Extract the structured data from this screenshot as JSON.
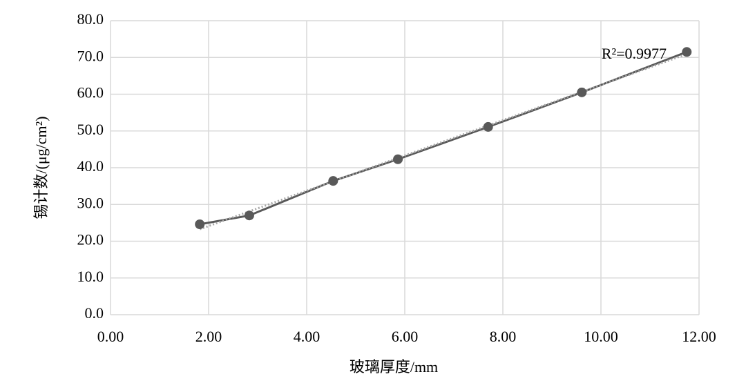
{
  "chart_data": {
    "type": "line",
    "x_label": "玻璃厚度/mm",
    "y_label": "锡计数/(μg/cm²)",
    "series": [
      {
        "color": "#595959",
        "x": [
          1.82,
          2.83,
          4.54,
          5.86,
          7.7,
          9.61,
          11.75
        ],
        "values": [
          24.6,
          27.0,
          36.4,
          42.3,
          51.1,
          60.5,
          71.5
        ]
      }
    ],
    "trendline": "linear",
    "trendline_color": "#a6a6a6",
    "r2_label": "R²=0.9977",
    "xlim": [
      0,
      12
    ],
    "xticks": [
      {
        "value": 0,
        "label": "0.00"
      },
      {
        "value": 2,
        "label": "2.00"
      },
      {
        "value": 4,
        "label": "4.00"
      },
      {
        "value": 6,
        "label": "6.00"
      },
      {
        "value": 8,
        "label": "8.00"
      },
      {
        "value": 10,
        "label": "10.00"
      },
      {
        "value": 12,
        "label": "12.00"
      }
    ],
    "ylim": [
      0,
      80
    ],
    "yticks": [
      {
        "value": 0,
        "label": "0.0"
      },
      {
        "value": 10,
        "label": "10.0"
      },
      {
        "value": 20,
        "label": "20.0"
      },
      {
        "value": 30,
        "label": "30.0"
      },
      {
        "value": 40,
        "label": "40.0"
      },
      {
        "value": 50,
        "label": "50.0"
      },
      {
        "value": 60,
        "label": "60.0"
      },
      {
        "value": 70,
        "label": "70.0"
      },
      {
        "value": 80,
        "label": "80.0"
      }
    ],
    "grid": true
  }
}
